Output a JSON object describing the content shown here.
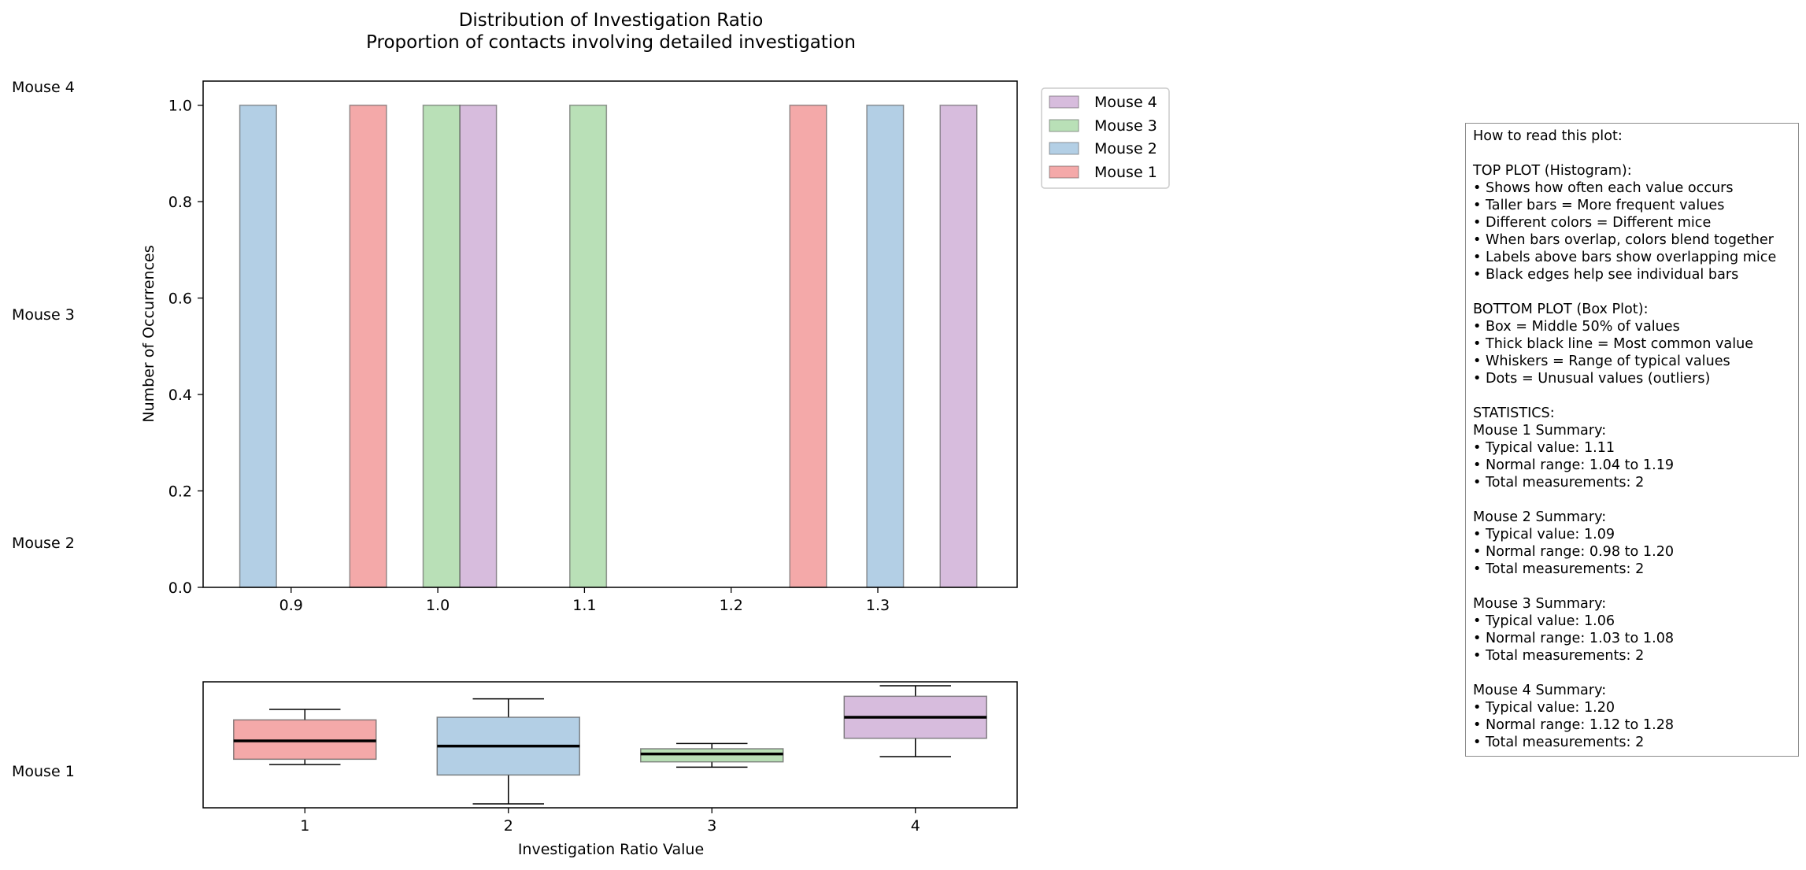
{
  "chart_data": [
    {
      "type": "bar",
      "title": "Distribution of Investigation Ratio",
      "subtitle": "Proportion of contacts involving detailed investigation",
      "ylabel": "Number of Occurrences",
      "xlabel": "",
      "xlim": [
        0.84,
        1.395
      ],
      "ylim": [
        0,
        1.05
      ],
      "xticks": [
        "0.9",
        "1.0",
        "1.1",
        "1.2",
        "1.3"
      ],
      "xtick_values": [
        0.9,
        1.0,
        1.1,
        1.2,
        1.3
      ],
      "yticks": [
        "0.0",
        "0.2",
        "0.4",
        "0.6",
        "0.8",
        "1.0"
      ],
      "ytick_values": [
        0,
        0.2,
        0.4,
        0.6,
        0.8,
        1.0
      ],
      "bar_width": 0.025,
      "grid": false,
      "legend_position": "upper right outside",
      "series": [
        {
          "name": "Mouse 4",
          "color": "#c9a6d1",
          "bars": [
            {
              "x": 1.0275,
              "count": 1
            },
            {
              "x": 1.355,
              "count": 1
            }
          ]
        },
        {
          "name": "Mouse 3",
          "color": "#a1d59f",
          "bars": [
            {
              "x": 1.0025,
              "count": 1
            },
            {
              "x": 1.1025,
              "count": 1
            }
          ]
        },
        {
          "name": "Mouse 2",
          "color": "#9abfdc",
          "bars": [
            {
              "x": 0.8775,
              "count": 1
            },
            {
              "x": 1.305,
              "count": 1
            }
          ]
        },
        {
          "name": "Mouse 1",
          "color": "#f08c8c",
          "bars": [
            {
              "x": 0.9525,
              "count": 1
            },
            {
              "x": 1.2525,
              "count": 1
            }
          ]
        }
      ]
    },
    {
      "type": "box",
      "xlabel": "Investigation Ratio Value",
      "categories": [
        "1",
        "2",
        "3",
        "4"
      ],
      "ylim": [
        0.855,
        1.335
      ],
      "series": [
        {
          "name": "Mouse 1",
          "color": "#f08c8c",
          "whisker_low": 1.02,
          "q1": 1.04,
          "median": 1.11,
          "q3": 1.19,
          "whisker_high": 1.23
        },
        {
          "name": "Mouse 2",
          "color": "#9abfdc",
          "whisker_low": 0.87,
          "q1": 0.98,
          "median": 1.09,
          "q3": 1.2,
          "whisker_high": 1.27
        },
        {
          "name": "Mouse 3",
          "color": "#a1d59f",
          "whisker_low": 1.01,
          "q1": 1.03,
          "median": 1.06,
          "q3": 1.08,
          "whisker_high": 1.1
        },
        {
          "name": "Mouse 4",
          "color": "#c9a6d1",
          "whisker_low": 1.05,
          "q1": 1.12,
          "median": 1.2,
          "q3": 1.28,
          "whisker_high": 1.32
        }
      ]
    }
  ],
  "side_labels": [
    "Mouse 4",
    "Mouse 3",
    "Mouse 2",
    "Mouse 1"
  ],
  "info_text": "How to read this plot:\n\nTOP PLOT (Histogram):\n• Shows how often each value occurs\n• Taller bars = More frequent values\n• Different colors = Different mice\n• When bars overlap, colors blend together\n• Labels above bars show overlapping mice\n• Black edges help see individual bars\n\nBOTTOM PLOT (Box Plot):\n• Box = Middle 50% of values\n• Thick black line = Most common value\n• Whiskers = Range of typical values\n• Dots = Unusual values (outliers)\n\nSTATISTICS:\nMouse 1 Summary:\n• Typical value: 1.11\n• Normal range: 1.04 to 1.19\n• Total measurements: 2\n\nMouse 2 Summary:\n• Typical value: 1.09\n• Normal range: 0.98 to 1.20\n• Total measurements: 2\n\nMouse 3 Summary:\n• Typical value: 1.06\n• Normal range: 1.03 to 1.08\n• Total measurements: 2\n\nMouse 4 Summary:\n• Typical value: 1.20\n• Normal range: 1.12 to 1.28\n• Total measurements: 2"
}
